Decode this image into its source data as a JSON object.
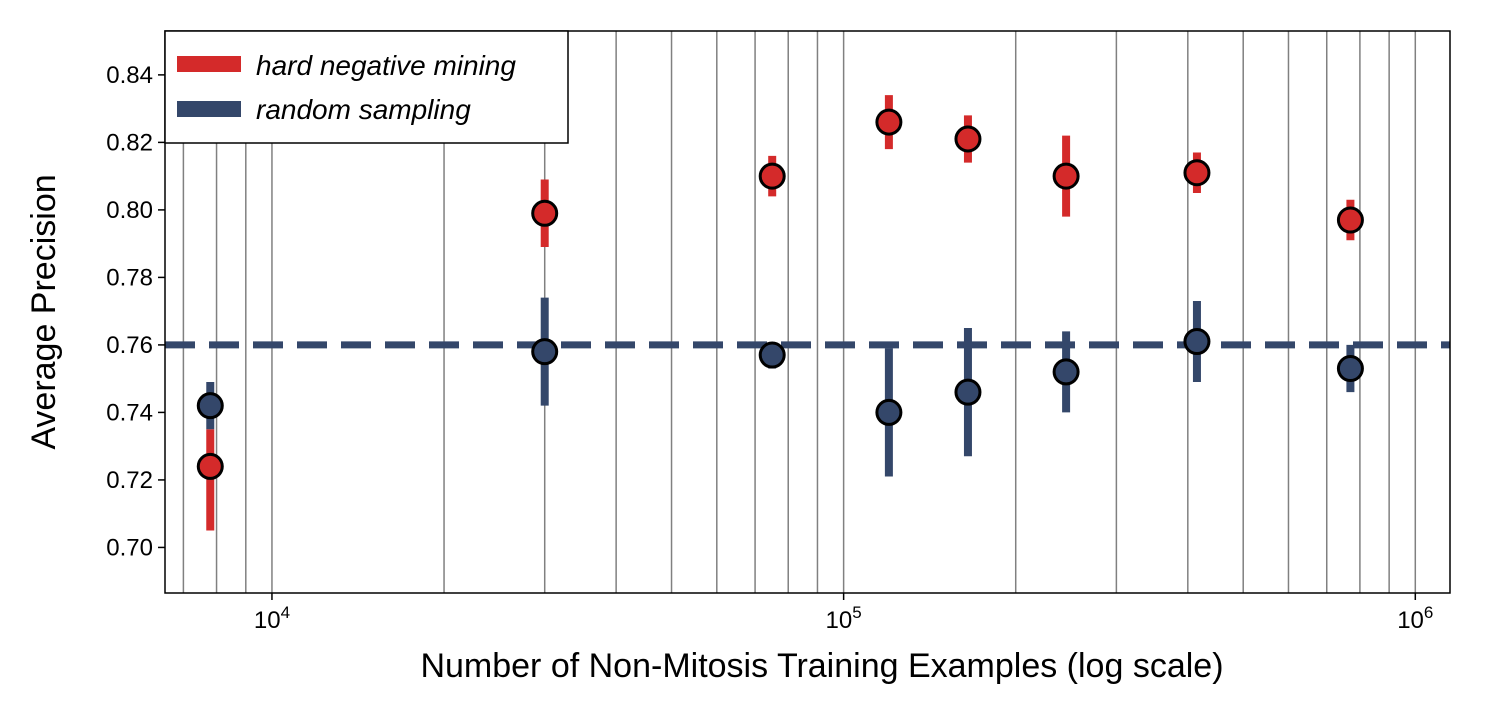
{
  "chart_data": {
    "type": "scatter",
    "title": "",
    "xlabel": "Number of Non-Mitosis Training Examples (log scale)",
    "ylabel": "Average Precision",
    "xscale": "log",
    "xlim": [
      6500,
      1150000
    ],
    "ylim": [
      0.6865,
      0.853
    ],
    "yticks": [
      0.7,
      0.72,
      0.74,
      0.76,
      0.78,
      0.8,
      0.82,
      0.84
    ],
    "ytick_labels": [
      "0.70",
      "0.72",
      "0.74",
      "0.76",
      "0.78",
      "0.80",
      "0.82",
      "0.84"
    ],
    "xticks_major": [
      10000,
      100000,
      1000000
    ],
    "xtick_labels": [
      {
        "base": "10",
        "exp": "4"
      },
      {
        "base": "10",
        "exp": "5"
      },
      {
        "base": "10",
        "exp": "6"
      }
    ],
    "grid": "vertical minor and major x gridlines",
    "legend_position": "top-left",
    "reference_line": {
      "y": 0.76,
      "style": "dashed",
      "color": "#34476a"
    },
    "series": [
      {
        "name": "hard negative mining",
        "color": "#d42a2a",
        "points": [
          {
            "x": 7800,
            "y": 0.724,
            "err_low": 0.705,
            "err_high": 0.735
          },
          {
            "x": 30000,
            "y": 0.799,
            "err_low": 0.789,
            "err_high": 0.809
          },
          {
            "x": 75000,
            "y": 0.81,
            "err_low": 0.804,
            "err_high": 0.816
          },
          {
            "x": 120000,
            "y": 0.826,
            "err_low": 0.818,
            "err_high": 0.834
          },
          {
            "x": 165000,
            "y": 0.821,
            "err_low": 0.814,
            "err_high": 0.828
          },
          {
            "x": 245000,
            "y": 0.81,
            "err_low": 0.798,
            "err_high": 0.822
          },
          {
            "x": 415000,
            "y": 0.811,
            "err_low": 0.805,
            "err_high": 0.817
          },
          {
            "x": 770000,
            "y": 0.797,
            "err_low": 0.791,
            "err_high": 0.803
          }
        ]
      },
      {
        "name": "random sampling",
        "color": "#34476a",
        "points": [
          {
            "x": 7800,
            "y": 0.742,
            "err_low": 0.735,
            "err_high": 0.749
          },
          {
            "x": 30000,
            "y": 0.758,
            "err_low": 0.742,
            "err_high": 0.774
          },
          {
            "x": 75000,
            "y": 0.757,
            "err_low": 0.753,
            "err_high": 0.76
          },
          {
            "x": 120000,
            "y": 0.74,
            "err_low": 0.721,
            "err_high": 0.759
          },
          {
            "x": 165000,
            "y": 0.746,
            "err_low": 0.727,
            "err_high": 0.765
          },
          {
            "x": 245000,
            "y": 0.752,
            "err_low": 0.74,
            "err_high": 0.764
          },
          {
            "x": 415000,
            "y": 0.761,
            "err_low": 0.749,
            "err_high": 0.773
          },
          {
            "x": 770000,
            "y": 0.753,
            "err_low": 0.746,
            "err_high": 0.76
          }
        ]
      }
    ]
  }
}
